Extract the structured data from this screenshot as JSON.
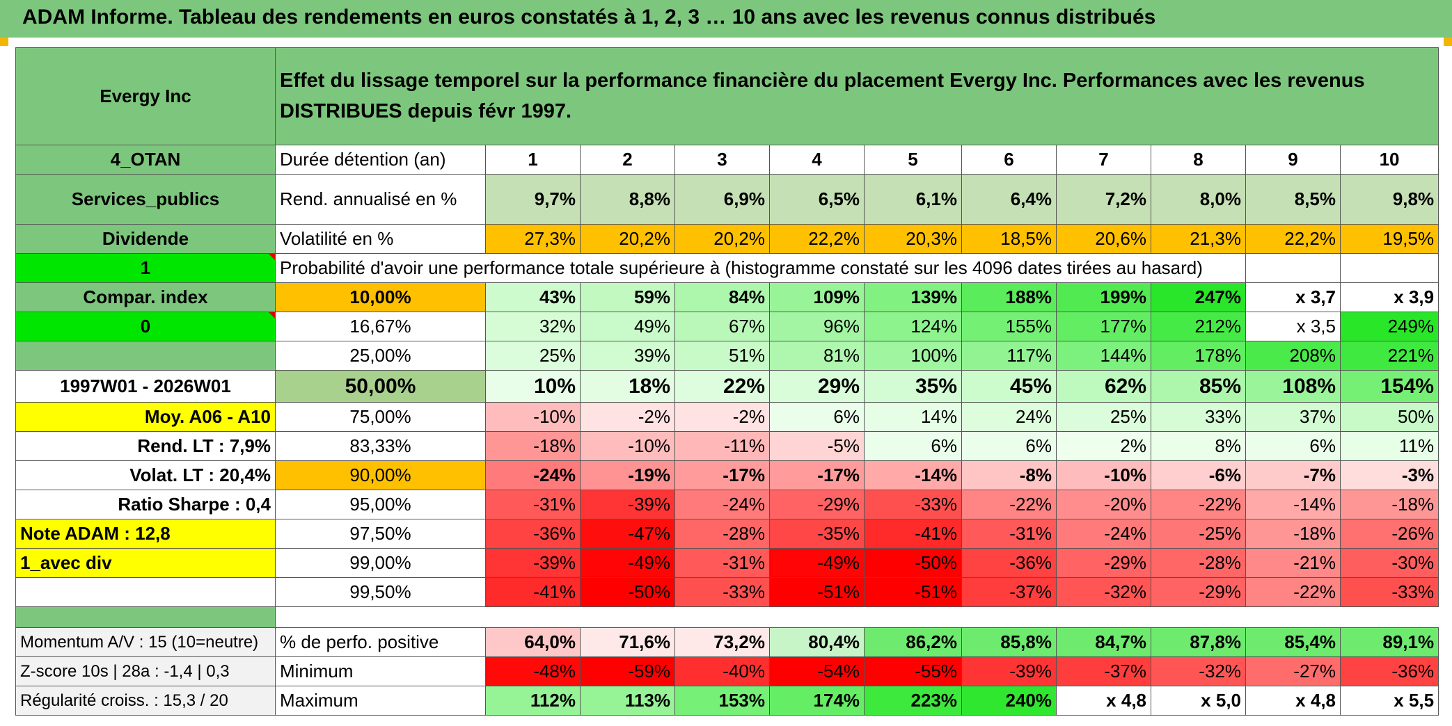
{
  "title": "ADAM Informe. Tableau des rendements en euros constatés à 1, 2, 3 … 10 ans avec les revenus connus distribués",
  "header": {
    "company": "Evergy Inc",
    "description": "Effet du lissage temporel sur la performance financière du placement Evergy Inc. Performances avec les revenus DISTRIBUES depuis févr 1997."
  },
  "side": {
    "r0": "4_OTAN",
    "r1": "Services_publics",
    "r2": "Dividende",
    "r3": "1",
    "r4": "Compar. index",
    "r5": "0",
    "r6": "",
    "r7": "1997W01 - 2026W01",
    "r8": "Moy. A06 - A10",
    "r9": "Rend. LT :   7,9%",
    "r10": "Volat. LT :   20,4%",
    "r11": "Ratio Sharpe :    0,4",
    "r12": "Note ADAM : 12,8",
    "r13": "1_avec div",
    "r14": "",
    "s0": "Momentum A/V : 15 (10=neutre)",
    "s1": "Z-score 10s | 28a : -1,4 | 0,3",
    "s2": "Régularité croiss. : 15,3 / 20"
  },
  "years_label": "Durée détention (an)",
  "years": [
    "1",
    "2",
    "3",
    "4",
    "5",
    "6",
    "7",
    "8",
    "9",
    "10"
  ],
  "rend_label": "Rend. annualisé en %",
  "rend": [
    "9,7%",
    "8,8%",
    "6,9%",
    "6,5%",
    "6,1%",
    "6,4%",
    "7,2%",
    "8,0%",
    "8,5%",
    "9,8%"
  ],
  "vol_label": "Volatilité en %",
  "vol": [
    "27,3%",
    "20,2%",
    "20,2%",
    "22,2%",
    "20,3%",
    "18,5%",
    "20,6%",
    "21,3%",
    "22,2%",
    "19,5%"
  ],
  "prob_label": "Probabilité d'avoir une performance totale supérieure à (histogramme constaté sur les 4096 dates tirées au hasard)",
  "percentiles": [
    {
      "p": "10,00%",
      "v": [
        "43%",
        "59%",
        "84%",
        "109%",
        "139%",
        "188%",
        "199%",
        "247%",
        "x 3,7",
        "x 3,9"
      ]
    },
    {
      "p": "16,67%",
      "v": [
        "32%",
        "49%",
        "67%",
        "96%",
        "124%",
        "155%",
        "177%",
        "212%",
        "x 3,5",
        "249%"
      ]
    },
    {
      "p": "25,00%",
      "v": [
        "25%",
        "39%",
        "51%",
        "81%",
        "100%",
        "117%",
        "144%",
        "178%",
        "208%",
        "221%"
      ]
    },
    {
      "p": "50,00%",
      "v": [
        "10%",
        "18%",
        "22%",
        "29%",
        "35%",
        "45%",
        "62%",
        "85%",
        "108%",
        "154%"
      ]
    },
    {
      "p": "75,00%",
      "v": [
        "-10%",
        "-2%",
        "-2%",
        "6%",
        "14%",
        "24%",
        "25%",
        "33%",
        "37%",
        "50%"
      ]
    },
    {
      "p": "83,33%",
      "v": [
        "-18%",
        "-10%",
        "-11%",
        "-5%",
        "6%",
        "6%",
        "2%",
        "8%",
        "6%",
        "11%"
      ]
    },
    {
      "p": "90,00%",
      "v": [
        "-24%",
        "-19%",
        "-17%",
        "-17%",
        "-14%",
        "-8%",
        "-10%",
        "-6%",
        "-7%",
        "-3%"
      ]
    },
    {
      "p": "95,00%",
      "v": [
        "-31%",
        "-39%",
        "-24%",
        "-29%",
        "-33%",
        "-22%",
        "-20%",
        "-22%",
        "-14%",
        "-18%"
      ]
    },
    {
      "p": "97,50%",
      "v": [
        "-36%",
        "-47%",
        "-28%",
        "-35%",
        "-41%",
        "-31%",
        "-24%",
        "-25%",
        "-18%",
        "-26%"
      ]
    },
    {
      "p": "99,00%",
      "v": [
        "-39%",
        "-49%",
        "-31%",
        "-49%",
        "-50%",
        "-36%",
        "-29%",
        "-28%",
        "-21%",
        "-30%"
      ]
    },
    {
      "p": "99,50%",
      "v": [
        "-41%",
        "-50%",
        "-33%",
        "-51%",
        "-51%",
        "-37%",
        "-32%",
        "-29%",
        "-22%",
        "-33%"
      ]
    }
  ],
  "pos_label": "% de perfo. positive",
  "pos": [
    "64,0%",
    "71,6%",
    "73,2%",
    "80,4%",
    "86,2%",
    "85,8%",
    "84,7%",
    "87,8%",
    "85,4%",
    "89,1%"
  ],
  "min_label": "Minimum",
  "min": [
    "-48%",
    "-59%",
    "-40%",
    "-54%",
    "-55%",
    "-39%",
    "-37%",
    "-32%",
    "-27%",
    "-36%"
  ],
  "max_label": "Maximum",
  "max": [
    "112%",
    "113%",
    "153%",
    "174%",
    "223%",
    "240%",
    "x 4,8",
    "x 5,0",
    "x 4,8",
    "x 5,5"
  ],
  "colors": {
    "header_green": "#7dc67d",
    "bright_green": "#00e600",
    "orange": "#ffc000",
    "yellow": "#ffff00",
    "red_text": "#e00000"
  }
}
